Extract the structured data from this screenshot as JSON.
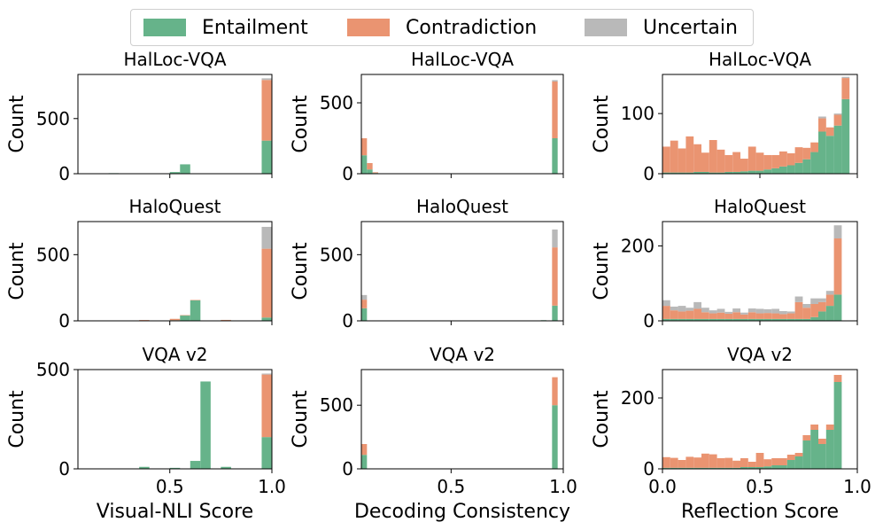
{
  "colors": {
    "entailment": "#66b38a",
    "contradiction": "#ea9471",
    "uncertain": "#b9b9b9"
  },
  "legend": [
    {
      "label": "Entailment",
      "color": "#66b38a"
    },
    {
      "label": "Contradiction",
      "color": "#ea9471"
    },
    {
      "label": "Uncertain",
      "color": "#b9b9b9"
    }
  ],
  "chart_data": [
    {
      "type": "bar",
      "stacked": true,
      "title": "HalLoc-VQA",
      "xlabel": "",
      "ylabel": "Count",
      "xlim": [
        0.05,
        1.0
      ],
      "ylim": [
        0,
        900
      ],
      "yticks": [
        0,
        500
      ],
      "xticks": [
        0.5,
        1.0
      ],
      "xticklabels": false,
      "bins": [
        {
          "x0": 0.2,
          "x1": 0.25,
          "e": 5,
          "c": 0,
          "u": 0
        },
        {
          "x0": 0.5,
          "x1": 0.55,
          "e": 15,
          "c": 0,
          "u": 0
        },
        {
          "x0": 0.55,
          "x1": 0.6,
          "e": 85,
          "c": 0,
          "u": 0
        },
        {
          "x0": 0.95,
          "x1": 1.0,
          "e": 300,
          "c": 550,
          "u": 15
        }
      ]
    },
    {
      "type": "bar",
      "stacked": true,
      "title": "HalLoc-VQA",
      "xlabel": "",
      "ylabel": "Count",
      "xlim": [
        0.1,
        1.0
      ],
      "ylim": [
        0,
        700
      ],
      "yticks": [
        0,
        500
      ],
      "xticks": [
        0.5,
        1.0
      ],
      "xticklabels": false,
      "bins": [
        {
          "x0": 0.1,
          "x1": 0.125,
          "e": 130,
          "c": 120,
          "u": 0
        },
        {
          "x0": 0.125,
          "x1": 0.15,
          "e": 30,
          "c": 45,
          "u": 0
        },
        {
          "x0": 0.15,
          "x1": 0.175,
          "e": 5,
          "c": 5,
          "u": 0
        },
        {
          "x0": 0.95,
          "x1": 0.975,
          "e": 250,
          "c": 400,
          "u": 10
        }
      ]
    },
    {
      "type": "bar",
      "stacked": true,
      "title": "HalLoc-VQA",
      "xlabel": "",
      "ylabel": "Count",
      "xlim": [
        0.0,
        1.0
      ],
      "ylim": [
        0,
        165
      ],
      "yticks": [
        0,
        100
      ],
      "xticks": [
        0.0,
        0.5,
        1.0
      ],
      "xticklabels": false,
      "bins": [
        {
          "x0": 0.0,
          "x1": 0.04,
          "e": 2,
          "c": 43,
          "u": 0
        },
        {
          "x0": 0.04,
          "x1": 0.08,
          "e": 2,
          "c": 53,
          "u": 0
        },
        {
          "x0": 0.08,
          "x1": 0.12,
          "e": 2,
          "c": 40,
          "u": 0
        },
        {
          "x0": 0.12,
          "x1": 0.16,
          "e": 2,
          "c": 60,
          "u": 0
        },
        {
          "x0": 0.16,
          "x1": 0.2,
          "e": 3,
          "c": 46,
          "u": 0
        },
        {
          "x0": 0.2,
          "x1": 0.24,
          "e": 3,
          "c": 32,
          "u": 0
        },
        {
          "x0": 0.24,
          "x1": 0.28,
          "e": 2,
          "c": 54,
          "u": 0
        },
        {
          "x0": 0.28,
          "x1": 0.32,
          "e": 2,
          "c": 38,
          "u": 0
        },
        {
          "x0": 0.32,
          "x1": 0.36,
          "e": 3,
          "c": 28,
          "u": 0
        },
        {
          "x0": 0.36,
          "x1": 0.4,
          "e": 3,
          "c": 33,
          "u": 0
        },
        {
          "x0": 0.4,
          "x1": 0.44,
          "e": 4,
          "c": 21,
          "u": 0
        },
        {
          "x0": 0.44,
          "x1": 0.48,
          "e": 5,
          "c": 40,
          "u": 0
        },
        {
          "x0": 0.48,
          "x1": 0.52,
          "e": 5,
          "c": 30,
          "u": 0
        },
        {
          "x0": 0.52,
          "x1": 0.56,
          "e": 7,
          "c": 24,
          "u": 0
        },
        {
          "x0": 0.56,
          "x1": 0.6,
          "e": 9,
          "c": 22,
          "u": 0
        },
        {
          "x0": 0.6,
          "x1": 0.64,
          "e": 12,
          "c": 25,
          "u": 0
        },
        {
          "x0": 0.64,
          "x1": 0.68,
          "e": 14,
          "c": 20,
          "u": 0
        },
        {
          "x0": 0.68,
          "x1": 0.72,
          "e": 18,
          "c": 26,
          "u": 0
        },
        {
          "x0": 0.72,
          "x1": 0.76,
          "e": 24,
          "c": 19,
          "u": 0
        },
        {
          "x0": 0.76,
          "x1": 0.8,
          "e": 36,
          "c": 16,
          "u": 0
        },
        {
          "x0": 0.8,
          "x1": 0.84,
          "e": 70,
          "c": 22,
          "u": 3
        },
        {
          "x0": 0.84,
          "x1": 0.88,
          "e": 63,
          "c": 14,
          "u": 0
        },
        {
          "x0": 0.88,
          "x1": 0.92,
          "e": 80,
          "c": 18,
          "u": 2
        },
        {
          "x0": 0.92,
          "x1": 0.96,
          "e": 124,
          "c": 35,
          "u": 2
        }
      ]
    },
    {
      "type": "bar",
      "stacked": true,
      "title": "HaloQuest",
      "xlabel": "",
      "ylabel": "Count",
      "xlim": [
        0.05,
        1.0
      ],
      "ylim": [
        0,
        750
      ],
      "yticks": [
        0,
        500
      ],
      "xticks": [
        0.5,
        1.0
      ],
      "xticklabels": false,
      "bins": [
        {
          "x0": 0.35,
          "x1": 0.4,
          "e": 3,
          "c": 3,
          "u": 0
        },
        {
          "x0": 0.5,
          "x1": 0.55,
          "e": 5,
          "c": 10,
          "u": 0
        },
        {
          "x0": 0.55,
          "x1": 0.6,
          "e": 40,
          "c": 3,
          "u": 0
        },
        {
          "x0": 0.6,
          "x1": 0.65,
          "e": 155,
          "c": 3,
          "u": 0
        },
        {
          "x0": 0.75,
          "x1": 0.8,
          "e": 5,
          "c": 2,
          "u": 0
        },
        {
          "x0": 0.95,
          "x1": 1.0,
          "e": 25,
          "c": 520,
          "u": 165
        }
      ]
    },
    {
      "type": "bar",
      "stacked": true,
      "title": "HaloQuest",
      "xlabel": "",
      "ylabel": "Count",
      "xlim": [
        0.1,
        1.0
      ],
      "ylim": [
        0,
        750
      ],
      "yticks": [
        0,
        500
      ],
      "xticks": [
        0.5,
        1.0
      ],
      "xticklabels": false,
      "bins": [
        {
          "x0": 0.1,
          "x1": 0.125,
          "e": 95,
          "c": 65,
          "u": 35
        },
        {
          "x0": 0.9,
          "x1": 0.925,
          "e": 5,
          "c": 0,
          "u": 0
        },
        {
          "x0": 0.95,
          "x1": 0.975,
          "e": 115,
          "c": 440,
          "u": 135
        }
      ]
    },
    {
      "type": "bar",
      "stacked": true,
      "title": "HaloQuest",
      "xlabel": "",
      "ylabel": "Count",
      "xlim": [
        0.0,
        1.0
      ],
      "ylim": [
        0,
        265
      ],
      "yticks": [
        0,
        200
      ],
      "xticks": [
        0.0,
        0.5,
        1.0
      ],
      "xticklabels": false,
      "bins": [
        {
          "x0": 0.0,
          "x1": 0.04,
          "e": 5,
          "c": 35,
          "u": 15
        },
        {
          "x0": 0.04,
          "x1": 0.08,
          "e": 5,
          "c": 23,
          "u": 10
        },
        {
          "x0": 0.08,
          "x1": 0.12,
          "e": 5,
          "c": 20,
          "u": 15
        },
        {
          "x0": 0.12,
          "x1": 0.16,
          "e": 5,
          "c": 22,
          "u": 8
        },
        {
          "x0": 0.16,
          "x1": 0.2,
          "e": 5,
          "c": 27,
          "u": 18
        },
        {
          "x0": 0.2,
          "x1": 0.24,
          "e": 5,
          "c": 18,
          "u": 12
        },
        {
          "x0": 0.24,
          "x1": 0.28,
          "e": 5,
          "c": 15,
          "u": 8
        },
        {
          "x0": 0.28,
          "x1": 0.32,
          "e": 5,
          "c": 17,
          "u": 10
        },
        {
          "x0": 0.32,
          "x1": 0.36,
          "e": 5,
          "c": 14,
          "u": 5
        },
        {
          "x0": 0.36,
          "x1": 0.4,
          "e": 5,
          "c": 18,
          "u": 10
        },
        {
          "x0": 0.4,
          "x1": 0.44,
          "e": 5,
          "c": 12,
          "u": 5
        },
        {
          "x0": 0.44,
          "x1": 0.48,
          "e": 5,
          "c": 18,
          "u": 10
        },
        {
          "x0": 0.48,
          "x1": 0.52,
          "e": 5,
          "c": 15,
          "u": 12
        },
        {
          "x0": 0.52,
          "x1": 0.56,
          "e": 5,
          "c": 16,
          "u": 10
        },
        {
          "x0": 0.56,
          "x1": 0.6,
          "e": 5,
          "c": 15,
          "u": 12
        },
        {
          "x0": 0.6,
          "x1": 0.64,
          "e": 5,
          "c": 13,
          "u": 8
        },
        {
          "x0": 0.64,
          "x1": 0.68,
          "e": 5,
          "c": 15,
          "u": 5
        },
        {
          "x0": 0.68,
          "x1": 0.72,
          "e": 5,
          "c": 45,
          "u": 15
        },
        {
          "x0": 0.72,
          "x1": 0.76,
          "e": 5,
          "c": 30,
          "u": 10
        },
        {
          "x0": 0.76,
          "x1": 0.8,
          "e": 10,
          "c": 35,
          "u": 15
        },
        {
          "x0": 0.8,
          "x1": 0.84,
          "e": 25,
          "c": 25,
          "u": 10
        },
        {
          "x0": 0.84,
          "x1": 0.88,
          "e": 40,
          "c": 30,
          "u": 10
        },
        {
          "x0": 0.88,
          "x1": 0.92,
          "e": 70,
          "c": 150,
          "u": 35
        }
      ]
    },
    {
      "type": "bar",
      "stacked": true,
      "title": "VQA v2",
      "xlabel": "Visual-NLI Score",
      "ylabel": "Count",
      "xlim": [
        0.05,
        1.0
      ],
      "ylim": [
        0,
        500
      ],
      "yticks": [
        0,
        500
      ],
      "xticks": [
        0.5,
        1.0
      ],
      "xticklabels": true,
      "bins": [
        {
          "x0": 0.35,
          "x1": 0.4,
          "e": 10,
          "c": 0,
          "u": 0
        },
        {
          "x0": 0.5,
          "x1": 0.55,
          "e": 5,
          "c": 0,
          "u": 0
        },
        {
          "x0": 0.6,
          "x1": 0.65,
          "e": 40,
          "c": 0,
          "u": 0
        },
        {
          "x0": 0.65,
          "x1": 0.7,
          "e": 440,
          "c": 0,
          "u": 0
        },
        {
          "x0": 0.75,
          "x1": 0.8,
          "e": 10,
          "c": 0,
          "u": 0
        },
        {
          "x0": 0.95,
          "x1": 1.0,
          "e": 160,
          "c": 315,
          "u": 5
        }
      ]
    },
    {
      "type": "bar",
      "stacked": true,
      "title": "VQA v2",
      "xlabel": "Decoding Consistency",
      "ylabel": "Count",
      "xlim": [
        0.1,
        1.0
      ],
      "ylim": [
        0,
        780
      ],
      "yticks": [
        0,
        500
      ],
      "xticks": [
        0.5,
        1.0
      ],
      "xticklabels": true,
      "bins": [
        {
          "x0": 0.1,
          "x1": 0.125,
          "e": 110,
          "c": 85,
          "u": 0
        },
        {
          "x0": 0.95,
          "x1": 0.975,
          "e": 500,
          "c": 220,
          "u": 0
        }
      ]
    },
    {
      "type": "bar",
      "stacked": true,
      "title": "VQA v2",
      "xlabel": "Reflection Score",
      "ylabel": "Count",
      "xlim": [
        0.0,
        1.0
      ],
      "ylim": [
        0,
        280
      ],
      "yticks": [
        0,
        200
      ],
      "xticks": [
        0.0,
        0.5,
        1.0
      ],
      "xticklabels": true,
      "bins": [
        {
          "x0": 0.0,
          "x1": 0.04,
          "e": 3,
          "c": 30,
          "u": 0
        },
        {
          "x0": 0.04,
          "x1": 0.08,
          "e": 3,
          "c": 28,
          "u": 0
        },
        {
          "x0": 0.08,
          "x1": 0.12,
          "e": 3,
          "c": 22,
          "u": 0
        },
        {
          "x0": 0.12,
          "x1": 0.16,
          "e": 3,
          "c": 31,
          "u": 0
        },
        {
          "x0": 0.16,
          "x1": 0.2,
          "e": 3,
          "c": 29,
          "u": 0
        },
        {
          "x0": 0.2,
          "x1": 0.24,
          "e": 3,
          "c": 40,
          "u": 0
        },
        {
          "x0": 0.24,
          "x1": 0.28,
          "e": 3,
          "c": 38,
          "u": 0
        },
        {
          "x0": 0.28,
          "x1": 0.32,
          "e": 3,
          "c": 27,
          "u": 0
        },
        {
          "x0": 0.32,
          "x1": 0.36,
          "e": 3,
          "c": 28,
          "u": 0
        },
        {
          "x0": 0.36,
          "x1": 0.4,
          "e": 3,
          "c": 20,
          "u": 0
        },
        {
          "x0": 0.4,
          "x1": 0.44,
          "e": 5,
          "c": 25,
          "u": 0
        },
        {
          "x0": 0.44,
          "x1": 0.48,
          "e": 5,
          "c": 15,
          "u": 0
        },
        {
          "x0": 0.48,
          "x1": 0.52,
          "e": 5,
          "c": 40,
          "u": 0
        },
        {
          "x0": 0.52,
          "x1": 0.56,
          "e": 7,
          "c": 20,
          "u": 0
        },
        {
          "x0": 0.56,
          "x1": 0.6,
          "e": 10,
          "c": 20,
          "u": 0
        },
        {
          "x0": 0.6,
          "x1": 0.64,
          "e": 10,
          "c": 20,
          "u": 0
        },
        {
          "x0": 0.64,
          "x1": 0.68,
          "e": 25,
          "c": 15,
          "u": 0
        },
        {
          "x0": 0.68,
          "x1": 0.72,
          "e": 35,
          "c": 10,
          "u": 0
        },
        {
          "x0": 0.72,
          "x1": 0.76,
          "e": 80,
          "c": 15,
          "u": 0
        },
        {
          "x0": 0.76,
          "x1": 0.8,
          "e": 110,
          "c": 15,
          "u": 0
        },
        {
          "x0": 0.8,
          "x1": 0.84,
          "e": 70,
          "c": 15,
          "u": 0
        },
        {
          "x0": 0.84,
          "x1": 0.88,
          "e": 110,
          "c": 15,
          "u": 0
        },
        {
          "x0": 0.88,
          "x1": 0.92,
          "e": 245,
          "c": 20,
          "u": 0
        }
      ]
    }
  ]
}
